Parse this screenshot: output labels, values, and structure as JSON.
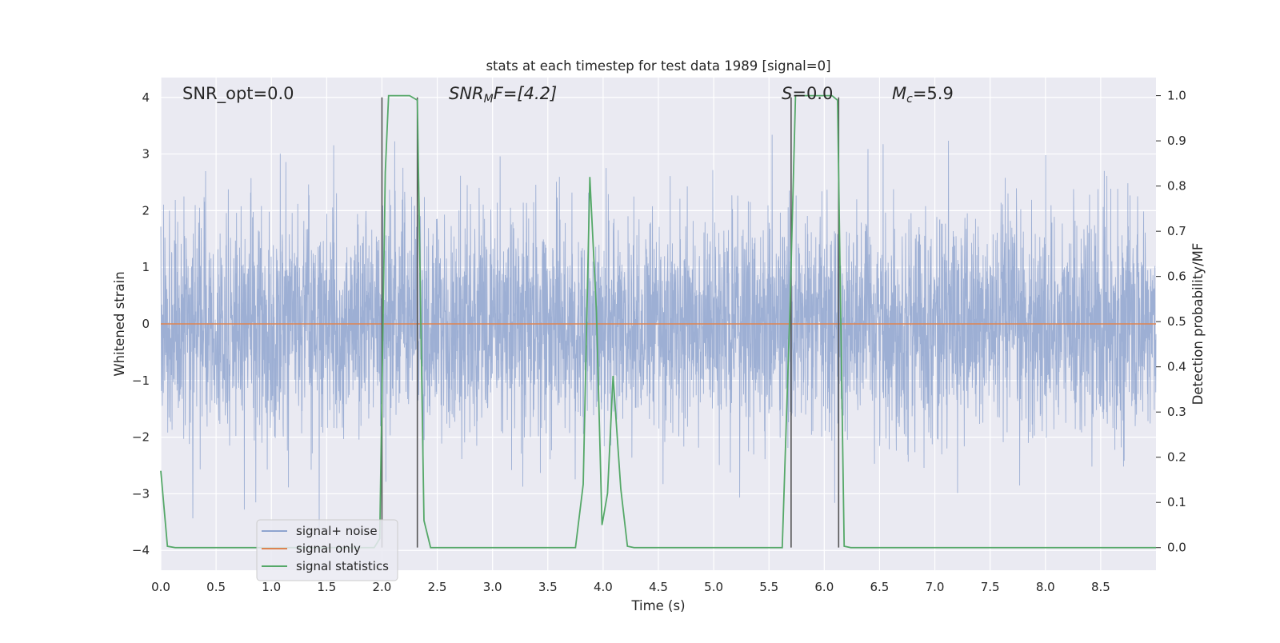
{
  "chart_data": {
    "type": "line",
    "title": "stats at each timestep for test data 1989 [signal=0]",
    "xlabel": "Time (s)",
    "ylabel_left": "Whitened strain",
    "ylabel_right": "Detection probability/MF",
    "xlim": [
      0.0,
      9.0
    ],
    "ylim_left": [
      -4.35,
      4.35
    ],
    "ylim_right": [
      -0.05,
      1.04
    ],
    "xticks": [
      0.0,
      0.5,
      1.0,
      1.5,
      2.0,
      2.5,
      3.0,
      3.5,
      4.0,
      4.5,
      5.0,
      5.5,
      6.0,
      6.5,
      7.0,
      7.5,
      8.0,
      8.5
    ],
    "xtick_labels": [
      "0.0",
      "0.5",
      "1.0",
      "1.5",
      "2.0",
      "2.5",
      "3.0",
      "3.5",
      "4.0",
      "4.5",
      "5.0",
      "5.5",
      "6.0",
      "6.5",
      "7.0",
      "7.5",
      "8.0",
      "8.5"
    ],
    "yticks_left": [
      -4,
      -3,
      -2,
      -1,
      0,
      1,
      2,
      3,
      4
    ],
    "ytick_labels_left": [
      "−4",
      "−3",
      "−2",
      "−1",
      "0",
      "1",
      "2",
      "3",
      "4"
    ],
    "yticks_right": [
      0.0,
      0.1,
      0.2,
      0.3,
      0.4,
      0.5,
      0.6,
      0.7,
      0.8,
      0.9,
      1.0
    ],
    "ytick_labels_right": [
      "0.0",
      "0.1",
      "0.2",
      "0.3",
      "0.4",
      "0.5",
      "0.6",
      "0.7",
      "0.8",
      "0.9",
      "1.0"
    ],
    "grid": true,
    "legend_position": "lower-left",
    "series": [
      {
        "name": "signal+ noise",
        "axis": "left",
        "color": "#8fa4cf",
        "kind": "noise",
        "envelope_p95": [
          -1.5,
          1.6
        ],
        "peak_range": [
          -3.8,
          3.8
        ]
      },
      {
        "name": "signal only",
        "axis": "left",
        "color": "#dd8452",
        "values": [
          [
            0.0,
            0.0
          ],
          [
            9.0,
            0.0
          ]
        ]
      },
      {
        "name": "signal statistics",
        "axis": "right",
        "color": "#55a868",
        "values": [
          [
            0.0,
            0.17
          ],
          [
            0.06,
            0.003
          ],
          [
            0.13,
            0.0
          ],
          [
            1.0,
            0.0
          ],
          [
            1.93,
            0.0
          ],
          [
            1.98,
            0.02
          ],
          [
            2.03,
            0.83
          ],
          [
            2.06,
            1.0
          ],
          [
            2.25,
            1.0
          ],
          [
            2.32,
            0.99
          ],
          [
            2.38,
            0.06
          ],
          [
            2.44,
            0.0
          ],
          [
            3.75,
            0.0
          ],
          [
            3.82,
            0.14
          ],
          [
            3.88,
            0.82
          ],
          [
            3.94,
            0.52
          ],
          [
            3.99,
            0.05
          ],
          [
            4.04,
            0.12
          ],
          [
            4.09,
            0.38
          ],
          [
            4.16,
            0.13
          ],
          [
            4.22,
            0.003
          ],
          [
            4.28,
            0.0
          ],
          [
            5.62,
            0.0
          ],
          [
            5.69,
            0.53
          ],
          [
            5.74,
            1.0
          ],
          [
            6.07,
            1.0
          ],
          [
            6.12,
            0.99
          ],
          [
            6.18,
            0.003
          ],
          [
            6.24,
            0.0
          ],
          [
            9.0,
            0.0
          ]
        ]
      }
    ],
    "vertical_markers": [
      2.0,
      2.32,
      5.7,
      6.13
    ],
    "vertical_marker_range": [
      -3.95,
      4.0
    ],
    "vertical_marker_color": "#555555"
  },
  "annotations": {
    "snr_opt": "SNR_opt=0.0",
    "snr_mf_main": "SNR",
    "snr_mf_sub": "M",
    "snr_mf_suffix": "F=[4.2]",
    "s_main": "S",
    "s_suffix": "=0.0",
    "mc_main": "M",
    "mc_sub": "c",
    "mc_suffix": "=5.9"
  },
  "legend": {
    "items": [
      {
        "label": "signal+ noise",
        "color": "#8fa4cf"
      },
      {
        "label": "signal only",
        "color": "#dd8452"
      },
      {
        "label": "signal statistics",
        "color": "#55a868"
      }
    ]
  }
}
